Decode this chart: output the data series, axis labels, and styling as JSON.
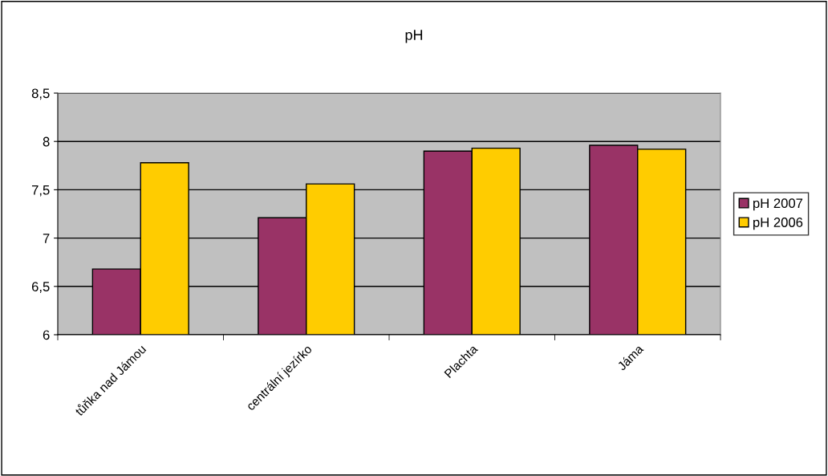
{
  "chart_data": {
    "type": "bar",
    "title": "pH",
    "categories": [
      "tůňka nad Jámou",
      "centrální jezírko",
      "Plachta",
      "Jáma"
    ],
    "series": [
      {
        "name": "pH 2007",
        "color": "#993366",
        "values": [
          6.68,
          7.21,
          7.9,
          7.96
        ]
      },
      {
        "name": "pH 2006",
        "color": "#ffcc00",
        "values": [
          7.78,
          7.56,
          7.93,
          7.92
        ]
      }
    ],
    "ylim": [
      6,
      8.5
    ],
    "yticks": [
      6,
      {
        "value": 6.5,
        "label": "6,5"
      },
      7,
      {
        "value": 7.5,
        "label": "7,5"
      },
      8,
      {
        "value": 8.5,
        "label": "8,5"
      }
    ],
    "grid": "y",
    "legend": "right"
  }
}
